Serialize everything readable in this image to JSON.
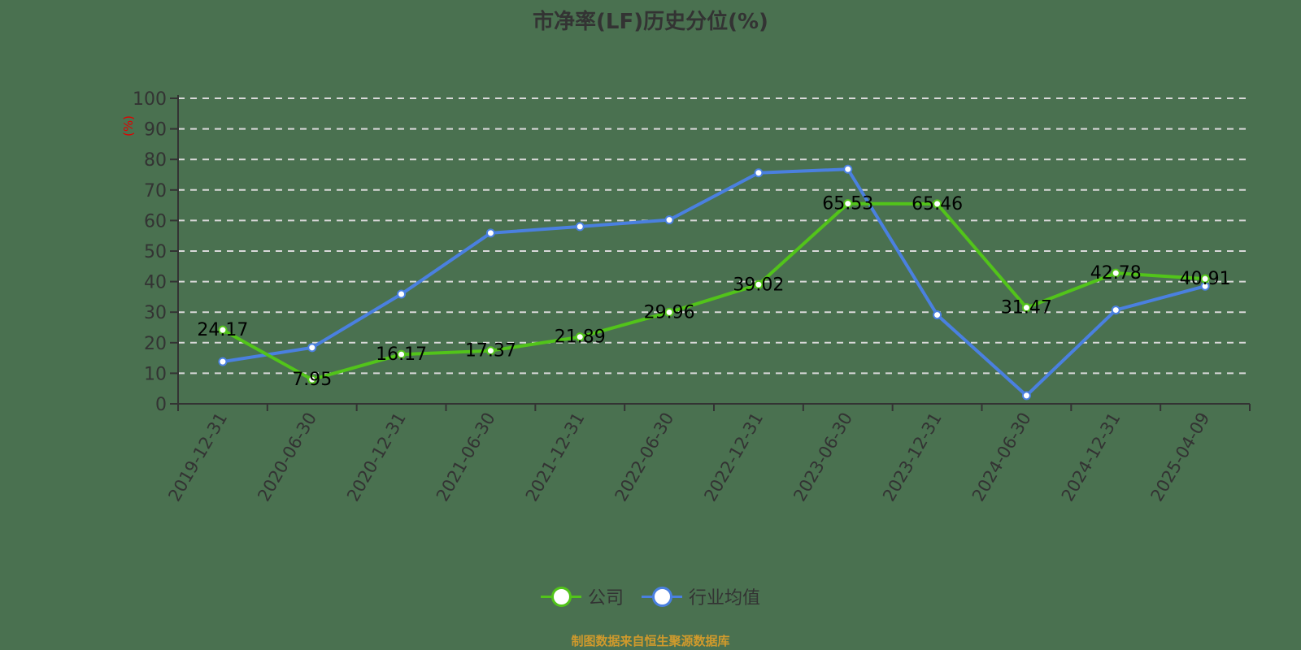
{
  "title": "市净率(LF)历史分位(%)",
  "y_unit_label": "(%)",
  "source_note": "制图数据来自恒生聚源数据库",
  "colors": {
    "background": "#4a7150",
    "company": "#52c41a",
    "industry": "#4a80e0",
    "axis": "#333333",
    "grid": "#d9d9d9",
    "unit_label": "#e00000",
    "source": "#d09a2c"
  },
  "legend": {
    "items": [
      {
        "label": "公司",
        "color": "#52c41a"
      },
      {
        "label": "行业均值",
        "color": "#4a80e0"
      }
    ]
  },
  "chart_data": {
    "type": "line",
    "title": "市净率(LF)历史分位(%)",
    "xlabel": "",
    "ylabel": "(%)",
    "ylim": [
      0,
      100
    ],
    "yticks": [
      0,
      10,
      20,
      30,
      40,
      50,
      60,
      70,
      80,
      90,
      100
    ],
    "grid": true,
    "legend_position": "bottom",
    "categories": [
      "2019-12-31",
      "2020-06-30",
      "2020-12-31",
      "2021-06-30",
      "2021-12-31",
      "2022-06-30",
      "2022-12-31",
      "2023-06-30",
      "2023-12-31",
      "2024-06-30",
      "2024-12-31",
      "2025-04-09"
    ],
    "series": [
      {
        "name": "公司",
        "color": "#52c41a",
        "show_labels": true,
        "values": [
          24.17,
          7.95,
          16.17,
          17.37,
          21.89,
          29.96,
          39.02,
          65.53,
          65.46,
          31.47,
          42.78,
          40.91
        ]
      },
      {
        "name": "行业均值",
        "color": "#4a80e0",
        "show_labels": false,
        "values": [
          13.8,
          18.4,
          35.9,
          55.9,
          58.0,
          60.2,
          75.6,
          76.8,
          29.1,
          2.7,
          30.7,
          38.5
        ]
      }
    ]
  }
}
